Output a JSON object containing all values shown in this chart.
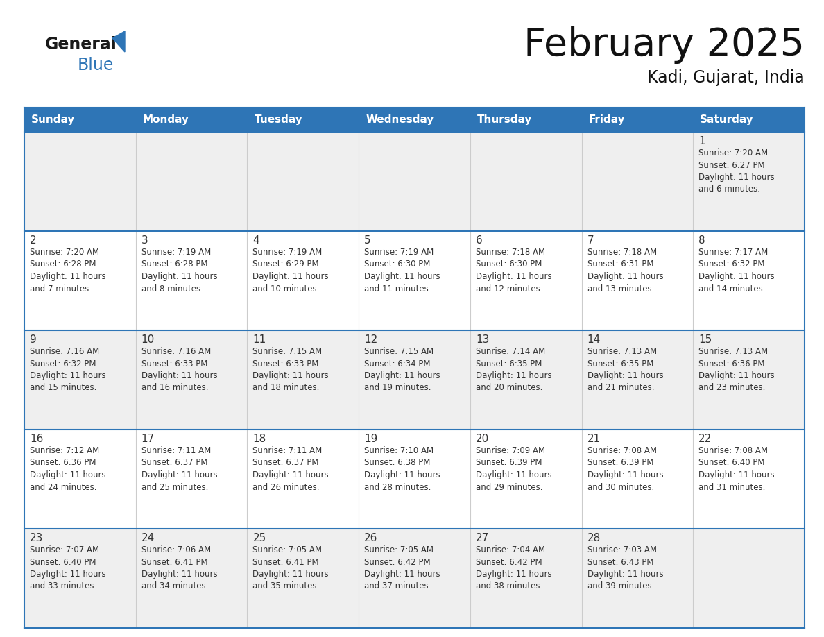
{
  "title": "February 2025",
  "subtitle": "Kadi, Gujarat, India",
  "header_bg": "#2E75B6",
  "header_text_color": "#FFFFFF",
  "days_of_week": [
    "Sunday",
    "Monday",
    "Tuesday",
    "Wednesday",
    "Thursday",
    "Friday",
    "Saturday"
  ],
  "bg_color": "#FFFFFF",
  "cell_bg_even": "#EFEFEF",
  "cell_bg_odd": "#FFFFFF",
  "border_color": "#2E75B6",
  "cell_border_color": "#AAAAAA",
  "day_num_color": "#333333",
  "info_text_color": "#333333",
  "calendar": [
    [
      {
        "day": null,
        "info": ""
      },
      {
        "day": null,
        "info": ""
      },
      {
        "day": null,
        "info": ""
      },
      {
        "day": null,
        "info": ""
      },
      {
        "day": null,
        "info": ""
      },
      {
        "day": null,
        "info": ""
      },
      {
        "day": 1,
        "info": "Sunrise: 7:20 AM\nSunset: 6:27 PM\nDaylight: 11 hours\nand 6 minutes."
      }
    ],
    [
      {
        "day": 2,
        "info": "Sunrise: 7:20 AM\nSunset: 6:28 PM\nDaylight: 11 hours\nand 7 minutes."
      },
      {
        "day": 3,
        "info": "Sunrise: 7:19 AM\nSunset: 6:28 PM\nDaylight: 11 hours\nand 8 minutes."
      },
      {
        "day": 4,
        "info": "Sunrise: 7:19 AM\nSunset: 6:29 PM\nDaylight: 11 hours\nand 10 minutes."
      },
      {
        "day": 5,
        "info": "Sunrise: 7:19 AM\nSunset: 6:30 PM\nDaylight: 11 hours\nand 11 minutes."
      },
      {
        "day": 6,
        "info": "Sunrise: 7:18 AM\nSunset: 6:30 PM\nDaylight: 11 hours\nand 12 minutes."
      },
      {
        "day": 7,
        "info": "Sunrise: 7:18 AM\nSunset: 6:31 PM\nDaylight: 11 hours\nand 13 minutes."
      },
      {
        "day": 8,
        "info": "Sunrise: 7:17 AM\nSunset: 6:32 PM\nDaylight: 11 hours\nand 14 minutes."
      }
    ],
    [
      {
        "day": 9,
        "info": "Sunrise: 7:16 AM\nSunset: 6:32 PM\nDaylight: 11 hours\nand 15 minutes."
      },
      {
        "day": 10,
        "info": "Sunrise: 7:16 AM\nSunset: 6:33 PM\nDaylight: 11 hours\nand 16 minutes."
      },
      {
        "day": 11,
        "info": "Sunrise: 7:15 AM\nSunset: 6:33 PM\nDaylight: 11 hours\nand 18 minutes."
      },
      {
        "day": 12,
        "info": "Sunrise: 7:15 AM\nSunset: 6:34 PM\nDaylight: 11 hours\nand 19 minutes."
      },
      {
        "day": 13,
        "info": "Sunrise: 7:14 AM\nSunset: 6:35 PM\nDaylight: 11 hours\nand 20 minutes."
      },
      {
        "day": 14,
        "info": "Sunrise: 7:13 AM\nSunset: 6:35 PM\nDaylight: 11 hours\nand 21 minutes."
      },
      {
        "day": 15,
        "info": "Sunrise: 7:13 AM\nSunset: 6:36 PM\nDaylight: 11 hours\nand 23 minutes."
      }
    ],
    [
      {
        "day": 16,
        "info": "Sunrise: 7:12 AM\nSunset: 6:36 PM\nDaylight: 11 hours\nand 24 minutes."
      },
      {
        "day": 17,
        "info": "Sunrise: 7:11 AM\nSunset: 6:37 PM\nDaylight: 11 hours\nand 25 minutes."
      },
      {
        "day": 18,
        "info": "Sunrise: 7:11 AM\nSunset: 6:37 PM\nDaylight: 11 hours\nand 26 minutes."
      },
      {
        "day": 19,
        "info": "Sunrise: 7:10 AM\nSunset: 6:38 PM\nDaylight: 11 hours\nand 28 minutes."
      },
      {
        "day": 20,
        "info": "Sunrise: 7:09 AM\nSunset: 6:39 PM\nDaylight: 11 hours\nand 29 minutes."
      },
      {
        "day": 21,
        "info": "Sunrise: 7:08 AM\nSunset: 6:39 PM\nDaylight: 11 hours\nand 30 minutes."
      },
      {
        "day": 22,
        "info": "Sunrise: 7:08 AM\nSunset: 6:40 PM\nDaylight: 11 hours\nand 31 minutes."
      }
    ],
    [
      {
        "day": 23,
        "info": "Sunrise: 7:07 AM\nSunset: 6:40 PM\nDaylight: 11 hours\nand 33 minutes."
      },
      {
        "day": 24,
        "info": "Sunrise: 7:06 AM\nSunset: 6:41 PM\nDaylight: 11 hours\nand 34 minutes."
      },
      {
        "day": 25,
        "info": "Sunrise: 7:05 AM\nSunset: 6:41 PM\nDaylight: 11 hours\nand 35 minutes."
      },
      {
        "day": 26,
        "info": "Sunrise: 7:05 AM\nSunset: 6:42 PM\nDaylight: 11 hours\nand 37 minutes."
      },
      {
        "day": 27,
        "info": "Sunrise: 7:04 AM\nSunset: 6:42 PM\nDaylight: 11 hours\nand 38 minutes."
      },
      {
        "day": 28,
        "info": "Sunrise: 7:03 AM\nSunset: 6:43 PM\nDaylight: 11 hours\nand 39 minutes."
      },
      {
        "day": null,
        "info": ""
      }
    ]
  ],
  "logo_text_general": "General",
  "logo_text_blue": "Blue",
  "logo_triangle_color": "#2E75B6"
}
